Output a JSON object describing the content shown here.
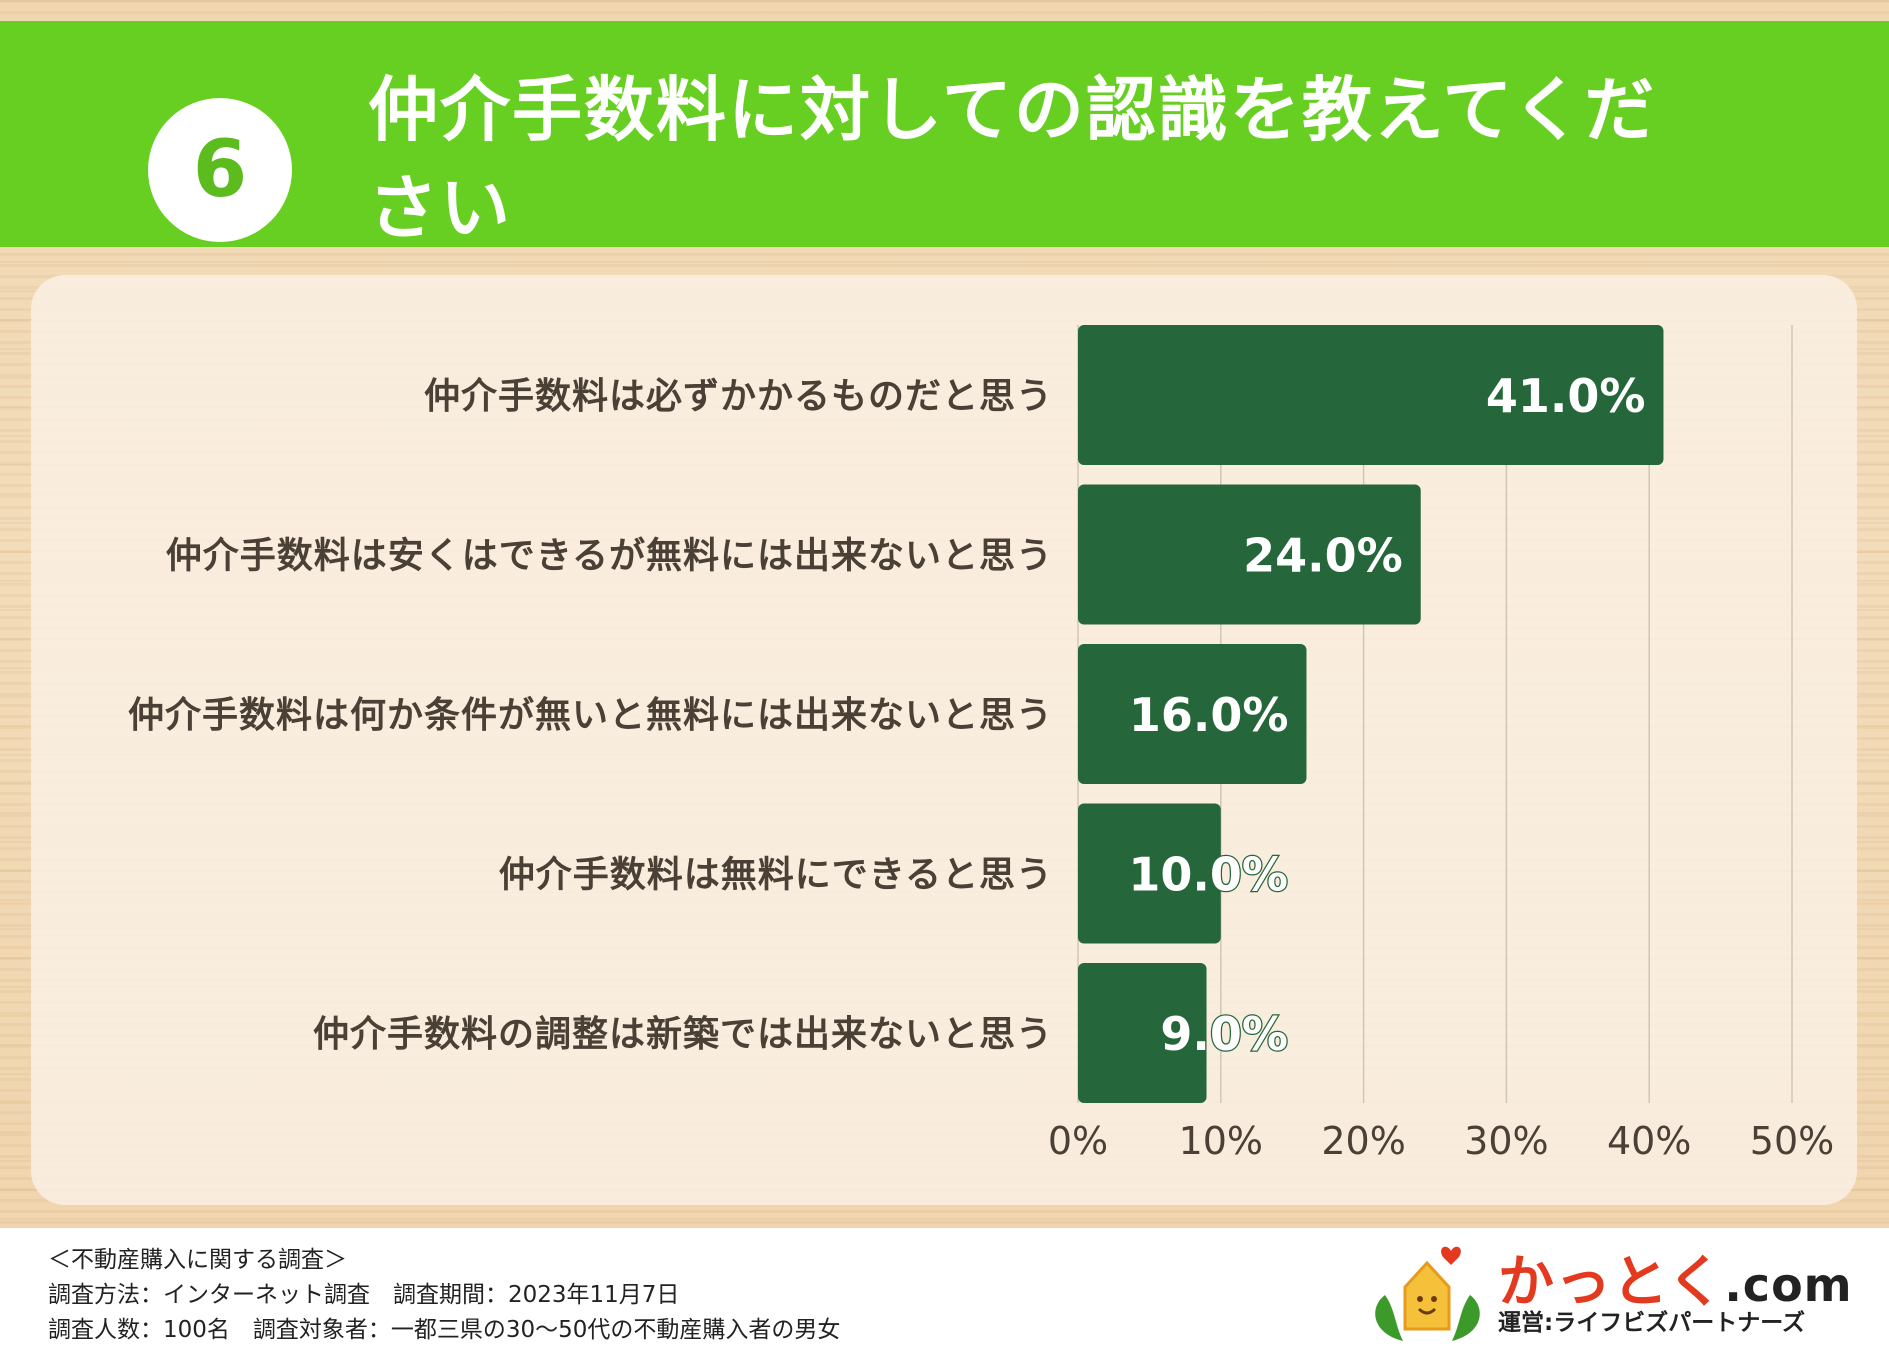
{
  "header": {
    "number": "6",
    "title": "仲介手数料に対しての認識を教えてください"
  },
  "chart_data": {
    "type": "bar",
    "orientation": "horizontal",
    "categories": [
      "仲介手数料は必ずかかるものだと思う",
      "仲介手数料は安くはできるが無料には出来ないと思う",
      "仲介手数料は何か条件が無いと無料には出来ないと思う",
      "仲介手数料は無料にできると思う",
      "仲介手数料の調整は新築では出来ないと思う"
    ],
    "values": [
      41.0,
      24.0,
      16.0,
      10.0,
      9.0
    ],
    "value_labels": [
      "41.0%",
      "24.0%",
      "16.0%",
      "10.0%",
      "9.0%"
    ],
    "xlim": [
      0,
      50
    ],
    "x_ticks": [
      "0%",
      "10%",
      "20%",
      "30%",
      "40%",
      "50%"
    ],
    "x_tick_values": [
      0,
      10,
      20,
      30,
      40,
      50
    ],
    "grid": true,
    "bar_color": "#25673a",
    "grid_color": "#cfc6bb",
    "label_color": "#4a4036"
  },
  "footer": {
    "survey_title": "＜不動産購入に関する調査＞",
    "method_line": "調査方法：インターネット調査　調査期間：2023年11月7日",
    "target_line": "調査人数：100名　調査対象者：一都三県の30〜50代の不動産購入者の男女"
  },
  "logo": {
    "name": "かっとく",
    "suffix": ".com",
    "operator": "運営:ライフビズパートナーズ"
  }
}
